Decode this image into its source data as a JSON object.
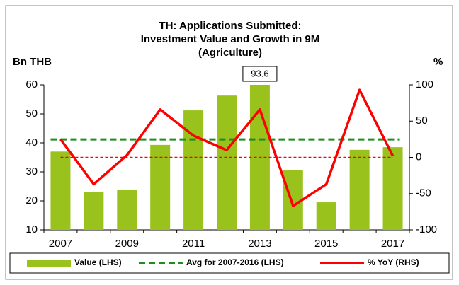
{
  "chart_data": {
    "type": "bar",
    "title": [
      "TH: Applications Submitted:",
      "Investment Value and Growth in 9M",
      "(Agriculture)"
    ],
    "y_label": "Bn THB",
    "y2_label": "%",
    "categories": [
      "2007",
      null,
      "2009",
      null,
      "2011",
      null,
      "2013",
      null,
      "2015",
      null,
      "2017"
    ],
    "series": [
      {
        "name": "Value (LHS)",
        "type": "bar",
        "color": "#99c31c",
        "values": [
          37,
          23,
          23.9,
          39.3,
          51.2,
          56.3,
          93.6,
          30.7,
          19.5,
          37.6,
          38.5
        ]
      },
      {
        "name": "Avg for 2007-2016 (LHS)",
        "type": "hline",
        "color": "#1e8c1e",
        "value": 41.2
      },
      {
        "name": "% YoY (RHS)",
        "type": "line",
        "axis": "y2",
        "color": "#ff0000",
        "values": [
          25,
          -37,
          3,
          66,
          30,
          10,
          66,
          -67,
          -37,
          93,
          2
        ]
      }
    ],
    "ylim": [
      10,
      60
    ],
    "yticks": [
      10,
      20,
      30,
      40,
      50,
      60
    ],
    "y2lim": [
      -100,
      100
    ],
    "y2ticks": [
      -100,
      -50,
      0,
      50,
      100
    ],
    "labeled_point": 6,
    "legend": "bottom"
  }
}
